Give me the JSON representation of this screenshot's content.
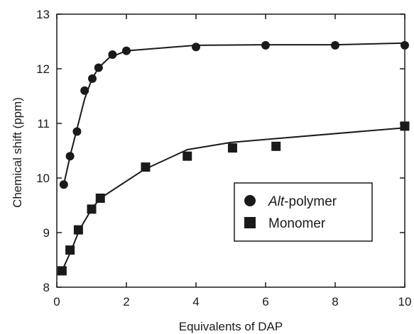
{
  "chart_data": {
    "type": "scatter",
    "xlabel": "Equivalents of DAP",
    "ylabel": "Chemical shift (ppm)",
    "xlim": [
      0,
      10
    ],
    "ylim": [
      8,
      13
    ],
    "x_ticks": [
      0,
      2,
      4,
      6,
      8,
      10
    ],
    "y_ticks": [
      8,
      9,
      10,
      11,
      12,
      13
    ],
    "grid": false,
    "legend_position": "right-center",
    "series": [
      {
        "name": "Alt-polymer",
        "name_parts": {
          "italic": "Alt",
          "rest": "-polymer"
        },
        "marker": "circle",
        "color": "#1a1a1a",
        "points": [
          [
            0.2,
            9.88
          ],
          [
            0.38,
            10.4
          ],
          [
            0.58,
            10.85
          ],
          [
            0.8,
            11.6
          ],
          [
            1.02,
            11.82
          ],
          [
            1.2,
            12.02
          ],
          [
            1.6,
            12.26
          ],
          [
            2.0,
            12.33
          ],
          [
            4.0,
            12.4
          ],
          [
            6.0,
            12.43
          ],
          [
            8.0,
            12.43
          ],
          [
            10.0,
            12.43
          ]
        ],
        "fit": [
          [
            0.2,
            9.88
          ],
          [
            0.4,
            10.45
          ],
          [
            0.6,
            10.95
          ],
          [
            0.8,
            11.45
          ],
          [
            1.0,
            11.8
          ],
          [
            1.2,
            12.02
          ],
          [
            1.5,
            12.2
          ],
          [
            2.0,
            12.33
          ],
          [
            4.0,
            12.43
          ],
          [
            6.0,
            12.44
          ],
          [
            8.0,
            12.44
          ],
          [
            10.0,
            12.47
          ]
        ]
      },
      {
        "name": "Monomer",
        "marker": "square",
        "color": "#1a1a1a",
        "points": [
          [
            0.15,
            8.3
          ],
          [
            0.38,
            8.68
          ],
          [
            0.62,
            9.05
          ],
          [
            1.0,
            9.43
          ],
          [
            1.25,
            9.63
          ],
          [
            2.55,
            10.2
          ],
          [
            3.75,
            10.4
          ],
          [
            5.05,
            10.55
          ],
          [
            6.3,
            10.58
          ],
          [
            10.0,
            10.95
          ]
        ],
        "fit": [
          [
            0.15,
            8.3
          ],
          [
            0.4,
            8.65
          ],
          [
            0.65,
            9.05
          ],
          [
            1.0,
            9.43
          ],
          [
            1.25,
            9.63
          ],
          [
            2.5,
            10.15
          ],
          [
            3.75,
            10.52
          ],
          [
            5.0,
            10.65
          ],
          [
            6.25,
            10.72
          ],
          [
            10.0,
            10.92
          ]
        ]
      }
    ]
  }
}
